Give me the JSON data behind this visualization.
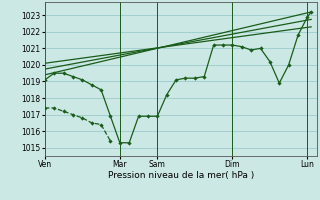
{
  "xlabel": "Pression niveau de la mer( hPa )",
  "background_color": "#cce8e4",
  "grid_color": "#99cccc",
  "line_color": "#1a5c1a",
  "ylim": [
    1014.5,
    1023.8
  ],
  "yticks": [
    1015,
    1016,
    1017,
    1018,
    1019,
    1020,
    1021,
    1022,
    1023
  ],
  "day_labels": [
    "Ven",
    "",
    "Mar",
    "Sam",
    "",
    "Dim",
    "",
    "Lun"
  ],
  "day_positions": [
    0,
    2,
    4,
    6,
    8,
    10,
    12,
    14
  ],
  "day_vline_positions": [
    0,
    4,
    6,
    10,
    14
  ],
  "day_tick_labels": [
    "Ven",
    "Mar",
    "Sam",
    "Dim",
    "Lun"
  ],
  "day_tick_positions": [
    0,
    4,
    6,
    10,
    14
  ],
  "main_x": [
    0,
    0.5,
    1.0,
    1.5,
    2.0,
    2.5,
    3.0,
    3.5,
    4.0,
    4.5,
    5.0,
    5.5,
    6.0,
    6.5,
    7.0,
    7.5,
    8.0,
    8.5,
    9.0,
    9.5,
    10.0,
    10.5,
    11.0,
    11.5,
    12.0,
    12.5,
    13.0,
    13.5,
    14.0,
    14.2
  ],
  "main_y": [
    1019.1,
    1019.5,
    1019.5,
    1019.3,
    1019.1,
    1018.8,
    1018.5,
    1016.9,
    1015.3,
    1015.3,
    1016.9,
    1016.9,
    1016.9,
    1018.2,
    1019.1,
    1019.2,
    1019.2,
    1019.3,
    1021.2,
    1021.2,
    1021.2,
    1021.1,
    1020.9,
    1021.0,
    1020.2,
    1018.9,
    1020.0,
    1021.8,
    1022.9,
    1023.2
  ],
  "trend1_x": [
    0,
    14.2
  ],
  "trend1_y": [
    1019.4,
    1023.2
  ],
  "trend2_x": [
    0,
    14.2
  ],
  "trend2_y": [
    1019.75,
    1022.75
  ],
  "trend3_x": [
    0,
    14.2
  ],
  "trend3_y": [
    1020.1,
    1022.3
  ],
  "lower_x": [
    0,
    0.5,
    1.0,
    1.5,
    2.0,
    2.5,
    3.0,
    3.5
  ],
  "lower_y": [
    1017.4,
    1017.4,
    1017.2,
    1017.0,
    1016.8,
    1016.5,
    1016.4,
    1015.4
  ],
  "xlim": [
    0,
    14.5
  ]
}
